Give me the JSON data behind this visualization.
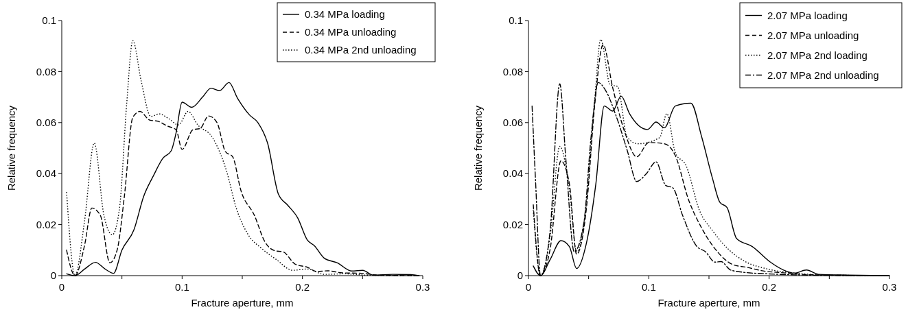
{
  "chart_data": [
    {
      "type": "line",
      "xlabel": "Fracture aperture, mm",
      "ylabel": "Relative frequency",
      "xlim": [
        0,
        0.3
      ],
      "ylim": [
        0,
        0.1
      ],
      "xticks": [
        0,
        {
          "value": 0.05,
          "label": null
        },
        0.1,
        {
          "value": 0.15,
          "label": null
        },
        0.2,
        {
          "value": 0.25,
          "label": null
        },
        0.3
      ],
      "yticks": [
        0,
        0.02,
        0.04,
        0.06,
        0.08,
        0.1
      ],
      "legend": "top right",
      "marker": "none",
      "series": [
        {
          "name": "0.34 MPa loading",
          "color": "#000000",
          "line_style": "solid",
          "x": [
            0.004,
            0.011,
            0.019,
            0.028,
            0.036,
            0.043,
            0.05,
            0.06,
            0.068,
            0.076,
            0.084,
            0.091,
            0.095,
            0.1,
            0.108,
            0.117,
            0.124,
            0.131,
            0.139,
            0.146,
            0.156,
            0.163,
            0.171,
            0.18,
            0.188,
            0.196,
            0.204,
            0.21,
            0.218,
            0.229,
            0.241,
            0.25,
            0.259,
            0.275,
            0.29,
            0.297
          ],
          "values": [
            0.0007,
            0,
            0.0026,
            0.0052,
            0.0026,
            0.0009,
            0.01,
            0.018,
            0.031,
            0.039,
            0.046,
            0.049,
            0.056,
            0.068,
            0.066,
            0.07,
            0.0735,
            0.0725,
            0.0757,
            0.0696,
            0.063,
            0.06,
            0.052,
            0.032,
            0.0275,
            0.0227,
            0.014,
            0.0117,
            0.0069,
            0.005,
            0.0018,
            0.0021,
            0.0002,
            0.0005,
            0.0004,
            0
          ]
        },
        {
          "name": "0.34 MPa unloading",
          "color": "#000000",
          "line_style": "dashed",
          "x": [
            0.004,
            0.011,
            0.019,
            0.025,
            0.032,
            0.04,
            0.046,
            0.052,
            0.059,
            0.065,
            0.073,
            0.08,
            0.088,
            0.095,
            0.1,
            0.109,
            0.115,
            0.122,
            0.129,
            0.136,
            0.142,
            0.149,
            0.16,
            0.169,
            0.177,
            0.184,
            0.194,
            0.204,
            0.212,
            0.221,
            0.233,
            0.249,
            0.263,
            0.296
          ],
          "values": [
            0.01,
            0,
            0.012,
            0.0265,
            0.0237,
            0.005,
            0.01,
            0.031,
            0.062,
            0.0644,
            0.061,
            0.0605,
            0.0586,
            0.0572,
            0.0495,
            0.0572,
            0.0577,
            0.0626,
            0.06,
            0.0486,
            0.0466,
            0.0332,
            0.0237,
            0.0131,
            0.0098,
            0.0093,
            0.0045,
            0.0033,
            0.0016,
            0.0019,
            0.0011,
            0.0009,
            0.0002,
            0
          ]
        },
        {
          "name": "0.34 MPa 2nd unloading",
          "color": "#000000",
          "line_style": "dotted",
          "x": [
            0.004,
            0.011,
            0.019,
            0.027,
            0.035,
            0.042,
            0.048,
            0.054,
            0.059,
            0.066,
            0.074,
            0.081,
            0.089,
            0.097,
            0.105,
            0.113,
            0.125,
            0.137,
            0.145,
            0.155,
            0.166,
            0.178,
            0.192,
            0.204,
            0.218,
            0.235,
            0.253,
            0.296
          ],
          "values": [
            0.0328,
            0,
            0.0217,
            0.052,
            0.0237,
            0.016,
            0.0265,
            0.0677,
            0.0921,
            0.0763,
            0.0624,
            0.0634,
            0.0615,
            0.0591,
            0.0644,
            0.0591,
            0.0543,
            0.0409,
            0.0265,
            0.016,
            0.0107,
            0.0064,
            0.0021,
            0.0026,
            0.0005,
            0.0007,
            0.0002,
            0
          ]
        }
      ]
    },
    {
      "type": "line",
      "xlabel": "Fracture aperture, mm",
      "ylabel": "Relative frequency",
      "xlim": [
        0,
        0.3
      ],
      "ylim": [
        0,
        0.1
      ],
      "xticks": [
        0,
        {
          "value": 0.05,
          "label": null
        },
        0.1,
        {
          "value": 0.15,
          "label": null
        },
        0.2,
        {
          "value": 0.25,
          "label": null
        },
        0.3
      ],
      "yticks": [
        0,
        0.02,
        0.04,
        0.06,
        0.08,
        0.1
      ],
      "legend": "top right",
      "marker": "none",
      "series": [
        {
          "name": "2.07 MPa loading",
          "color": "#000000",
          "line_style": "solid",
          "x": [
            0.004,
            0.01,
            0.018,
            0.027,
            0.034,
            0.04,
            0.048,
            0.056,
            0.063,
            0.07,
            0.077,
            0.084,
            0.099,
            0.106,
            0.113,
            0.122,
            0.135,
            0.144,
            0.153,
            0.159,
            0.165,
            0.173,
            0.186,
            0.201,
            0.212,
            0.221,
            0.231,
            0.241,
            0.265,
            0.3
          ],
          "values": [
            0.0038,
            0,
            0.0063,
            0.0137,
            0.0114,
            0.0028,
            0.0124,
            0.036,
            0.0665,
            0.0645,
            0.0704,
            0.0635,
            0.0573,
            0.0602,
            0.058,
            0.0665,
            0.0676,
            0.0543,
            0.038,
            0.0288,
            0.0267,
            0.0145,
            0.0114,
            0.0053,
            0.0022,
            0.001,
            0.0022,
            0.0005,
            0.0002,
            0
          ]
        },
        {
          "name": "2.07 MPa unloading",
          "color": "#000000",
          "line_style": "dashed",
          "x": [
            0.004,
            0.01,
            0.018,
            0.027,
            0.034,
            0.04,
            0.048,
            0.055,
            0.062,
            0.07,
            0.08,
            0.09,
            0.1,
            0.113,
            0.122,
            0.133,
            0.144,
            0.157,
            0.17,
            0.181,
            0.197,
            0.21,
            0.232,
            0.265,
            0.3
          ],
          "values": [
            0.0278,
            0,
            0.0104,
            0.045,
            0.036,
            0.0084,
            0.0257,
            0.0665,
            0.0905,
            0.0737,
            0.0563,
            0.0466,
            0.0522,
            0.0517,
            0.0471,
            0.0298,
            0.0186,
            0.0094,
            0.0043,
            0.0033,
            0.0017,
            0.0012,
            0.0004,
            0.0001,
            0
          ]
        },
        {
          "name": "2.07 MPa 2nd loading",
          "color": "#000000",
          "line_style": "dotted",
          "x": [
            0.004,
            0.01,
            0.018,
            0.026,
            0.034,
            0.04,
            0.048,
            0.055,
            0.06,
            0.068,
            0.074,
            0.082,
            0.091,
            0.109,
            0.115,
            0.122,
            0.131,
            0.142,
            0.153,
            0.166,
            0.181,
            0.197,
            0.221,
            0.254,
            0.3
          ],
          "values": [
            0.0257,
            0,
            0.0155,
            0.0507,
            0.0339,
            0.0094,
            0.0278,
            0.0686,
            0.0926,
            0.0747,
            0.0742,
            0.0543,
            0.0517,
            0.0541,
            0.0635,
            0.0482,
            0.0431,
            0.0257,
            0.0176,
            0.0104,
            0.0053,
            0.0028,
            0.001,
            0.0002,
            0
          ]
        },
        {
          "name": "2.07 MPa 2nd unloading",
          "color": "#000000",
          "line_style": "dashdot",
          "x": [
            0.003,
            0.006,
            0.01,
            0.018,
            0.026,
            0.031,
            0.038,
            0.046,
            0.052,
            0.058,
            0.064,
            0.073,
            0.082,
            0.09,
            0.098,
            0.106,
            0.114,
            0.12,
            0.128,
            0.14,
            0.147,
            0.155,
            0.16,
            0.168,
            0.181,
            0.199,
            0.232,
            0.3
          ],
          "values": [
            0.0665,
            0.036,
            0,
            0.0176,
            0.0752,
            0.0461,
            0.0094,
            0.0206,
            0.0543,
            0.0757,
            0.0727,
            0.0624,
            0.0492,
            0.0369,
            0.04,
            0.0446,
            0.0354,
            0.0344,
            0.0237,
            0.0114,
            0.0094,
            0.0053,
            0.0055,
            0.0022,
            0.0012,
            0.0007,
            0.0002,
            0
          ]
        }
      ]
    }
  ]
}
